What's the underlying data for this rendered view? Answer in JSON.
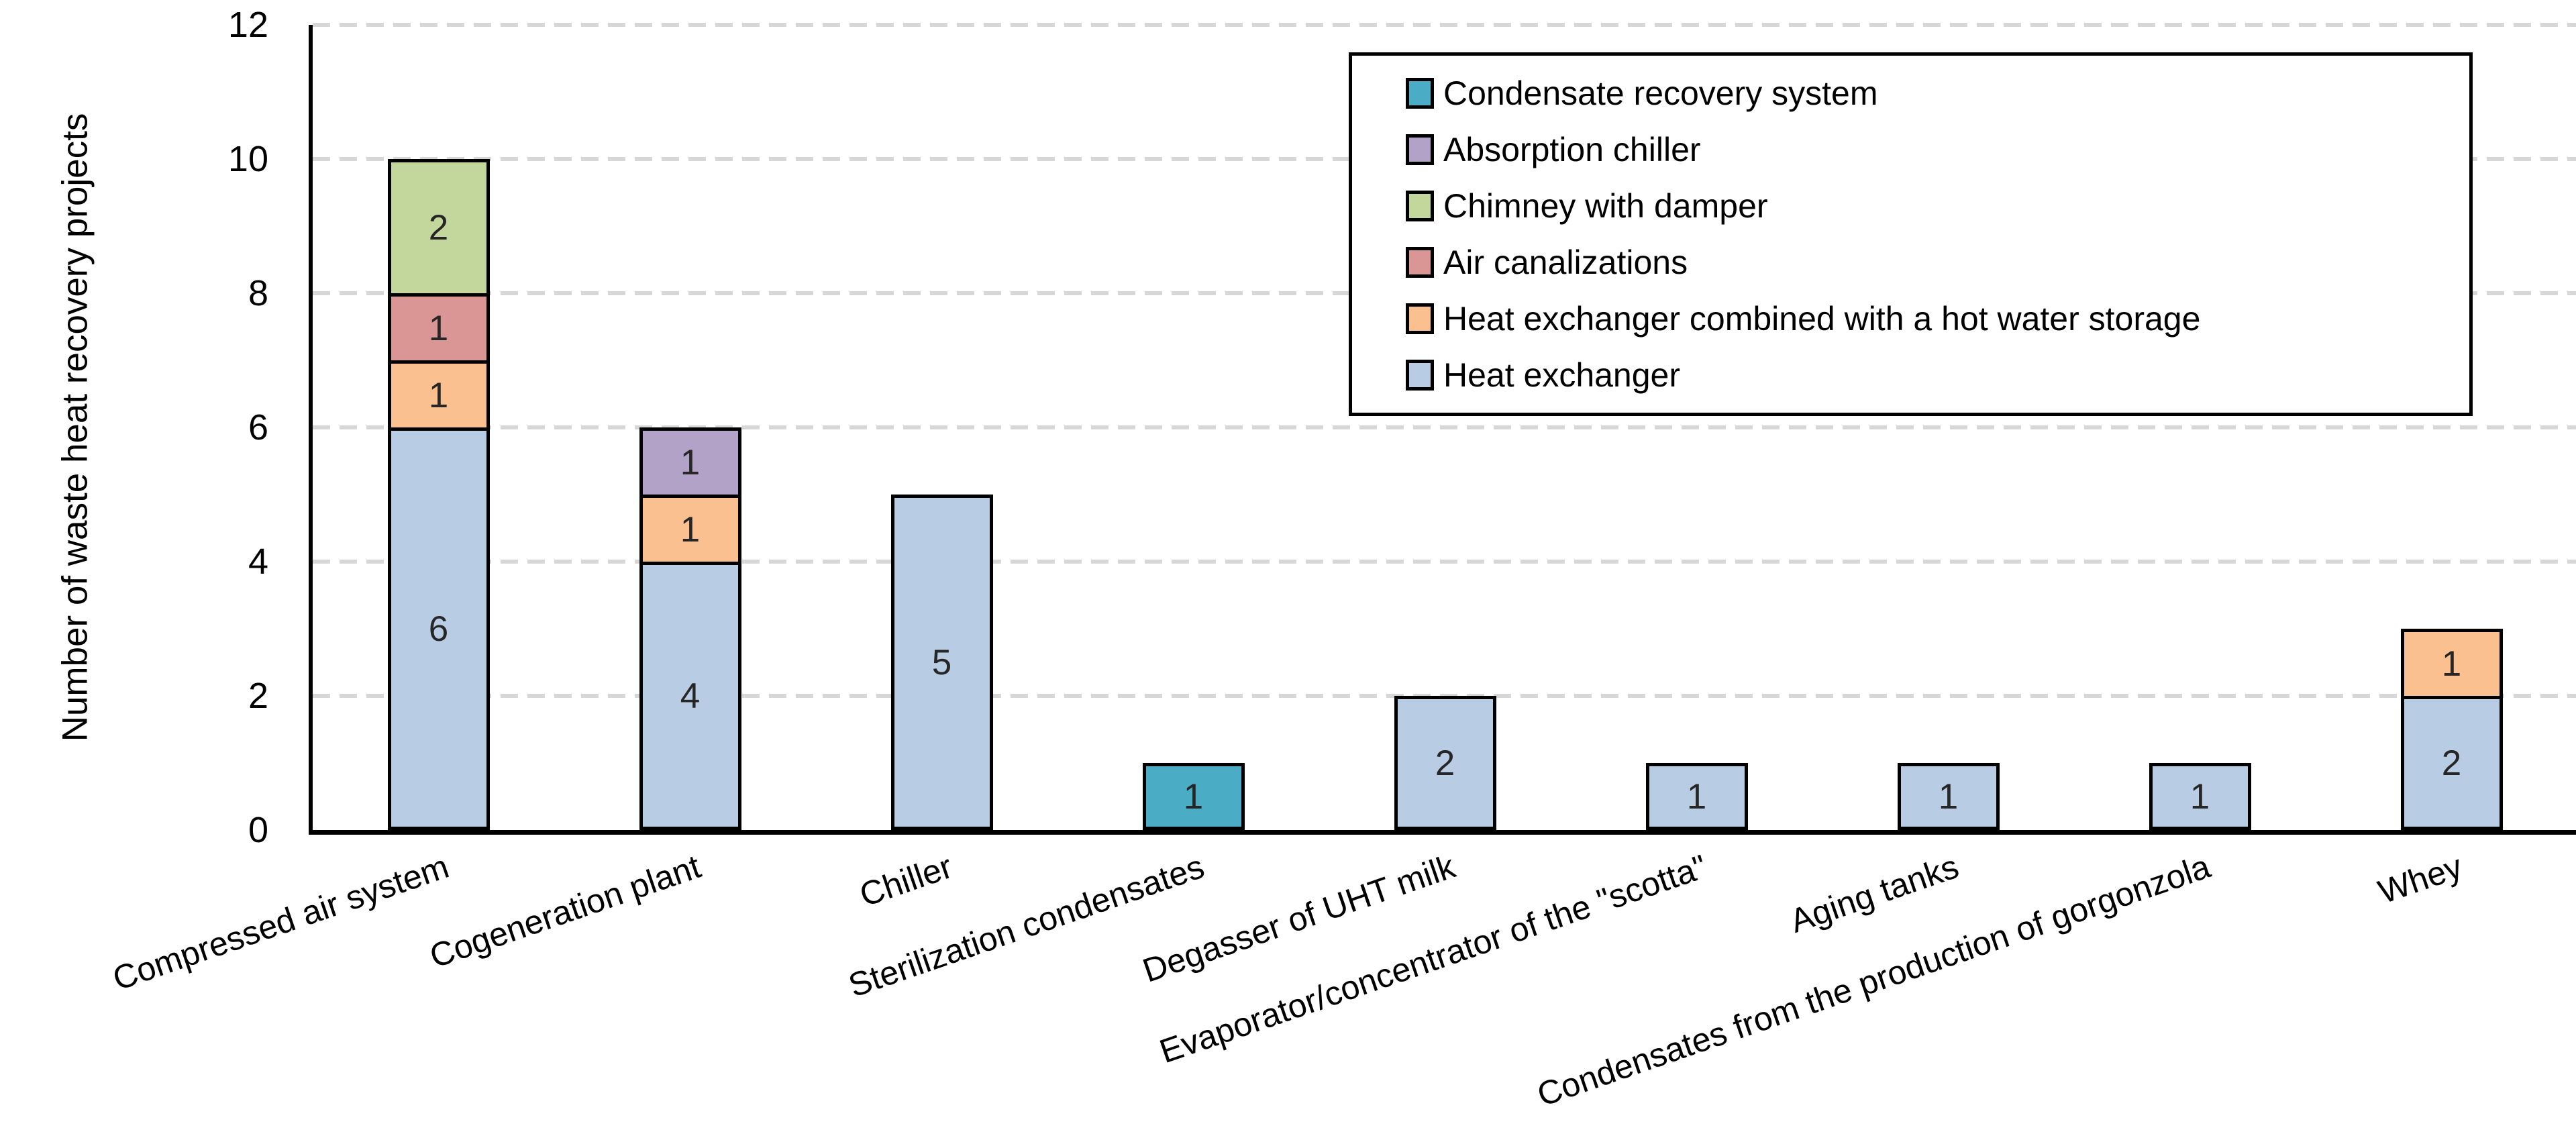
{
  "chart_data": {
    "type": "bar",
    "stacked": true,
    "title": "",
    "xlabel": "",
    "ylabel": "Number of waste heat recovery projects",
    "ylim": [
      0,
      12
    ],
    "yticks": [
      0,
      2,
      4,
      6,
      8,
      10,
      12
    ],
    "grid": "horizontal-dashed",
    "legend_position": "top-right-inside",
    "bar_value_labels_visible": true,
    "categories": [
      "Compressed air system",
      "Cogeneration plant",
      "Chiller",
      "Sterilization condensates",
      "Degasser of UHT milk",
      "Evaporator/concentrator of the \"scotta\"",
      "Aging tanks",
      "Condensates from the production of gorgonzola",
      "Whey"
    ],
    "series": [
      {
        "name": "Condensate recovery system",
        "color": "#4bacc6",
        "values": [
          0,
          0,
          0,
          1,
          0,
          0,
          0,
          0,
          0
        ]
      },
      {
        "name": "Absorption chiller",
        "color": "#b3a2c7",
        "values": [
          0,
          1,
          0,
          0,
          0,
          0,
          0,
          0,
          0
        ]
      },
      {
        "name": "Chimney with damper",
        "color": "#c3d69b",
        "values": [
          2,
          0,
          0,
          0,
          0,
          0,
          0,
          0,
          0
        ]
      },
      {
        "name": "Air canalizations",
        "color": "#d99694",
        "values": [
          1,
          0,
          0,
          0,
          0,
          0,
          0,
          0,
          0
        ]
      },
      {
        "name": "Heat exchanger combined with a hot water storage",
        "color": "#fac090",
        "values": [
          1,
          1,
          0,
          0,
          0,
          0,
          0,
          0,
          1
        ]
      },
      {
        "name": "Heat exchanger",
        "color": "#b8cce4",
        "values": [
          6,
          4,
          5,
          0,
          2,
          1,
          1,
          1,
          2
        ]
      }
    ],
    "stack_order_bottom_to_top": [
      "Heat exchanger",
      "Heat exchanger combined with a hot water storage",
      "Air canalizations",
      "Chimney with damper",
      "Absorption chiller",
      "Condensate recovery system"
    ],
    "colors": {
      "axis": "#000000",
      "gridline": "#d7d7d7",
      "bar_border": "#000000",
      "value_label_text": "#262626",
      "legend_border": "#000000",
      "legend_background": "#ffffff"
    }
  }
}
